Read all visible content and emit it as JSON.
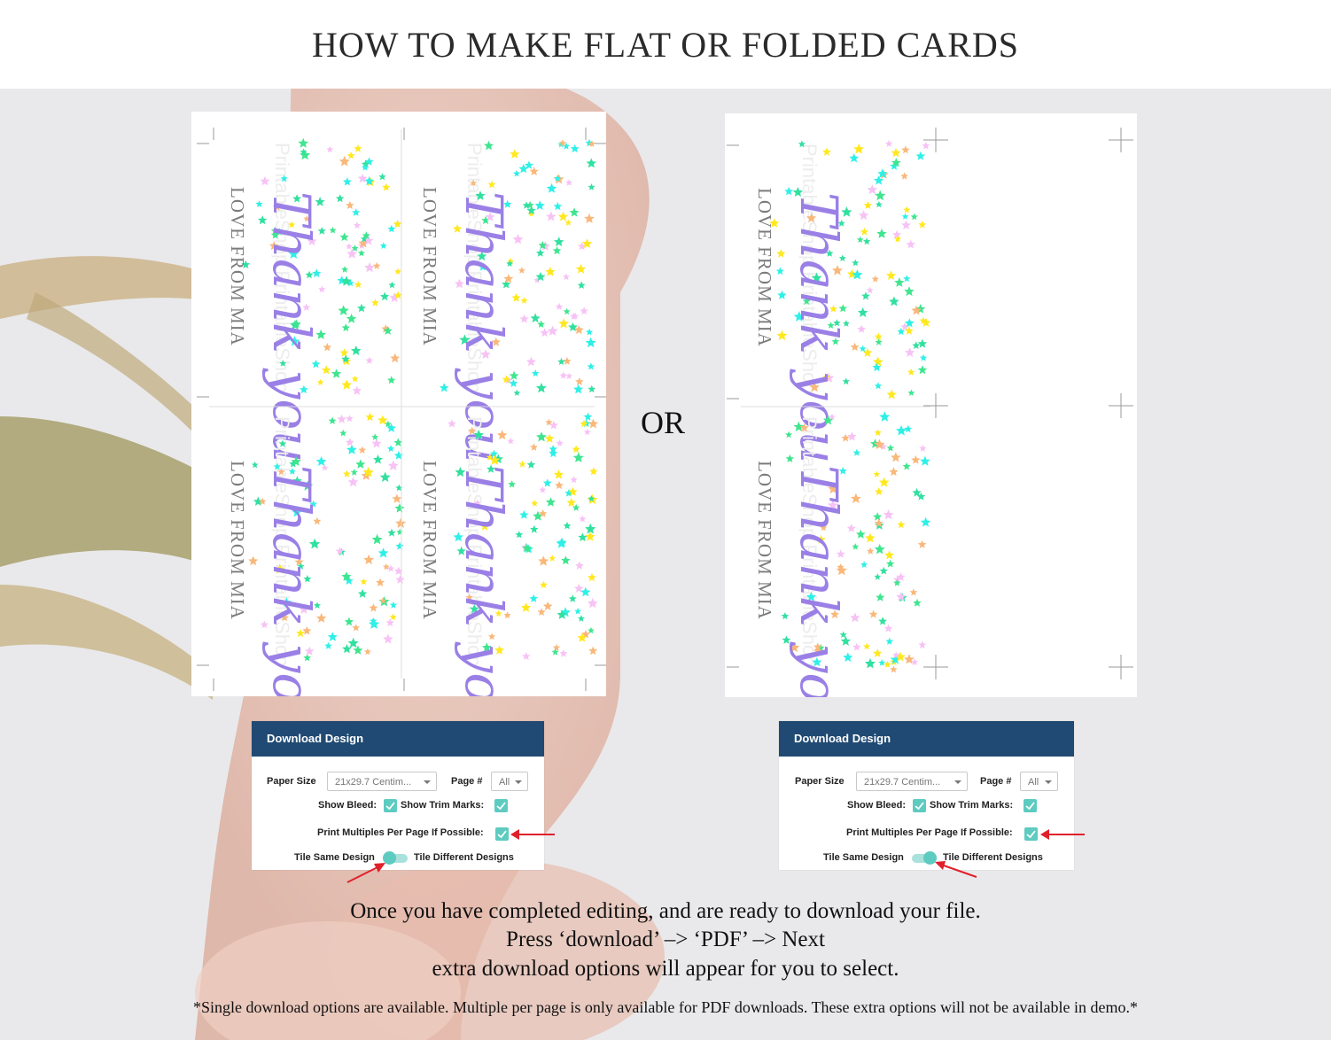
{
  "title": "HOW TO MAKE FLAT OR FOLDED CARDS",
  "separator": "OR",
  "card": {
    "greeting": "Thank you",
    "from_line": "LOVE FROM MIA",
    "watermark": "PrintableShop"
  },
  "dialog": {
    "title": "Download Design",
    "paper_size_label": "Paper Size",
    "paper_size_value": "21x29.7 Centim...",
    "page_label": "Page #",
    "page_value": "All",
    "show_bleed_label": "Show Bleed:",
    "show_trim_label": "Show Trim Marks:",
    "print_multiples_label": "Print Multiples Per Page If Possible:",
    "tile_same_label": "Tile Same Design",
    "tile_diff_label": "Tile Different Designs"
  },
  "instructions": {
    "line1": "Once you have completed editing, and are ready to download your file.",
    "line2": "Press ‘download’ –> ‘PDF’ –> Next",
    "line3": "extra download options will appear for you to select."
  },
  "note": "*Single download options are available. Multiple per page is only available for PDF downloads. These extra options will not be available in demo.*",
  "colors": {
    "dialog_header": "#204a73",
    "checkbox": "#5ecbc0",
    "script": "#9a80e6",
    "arrow": "#e0202a"
  }
}
